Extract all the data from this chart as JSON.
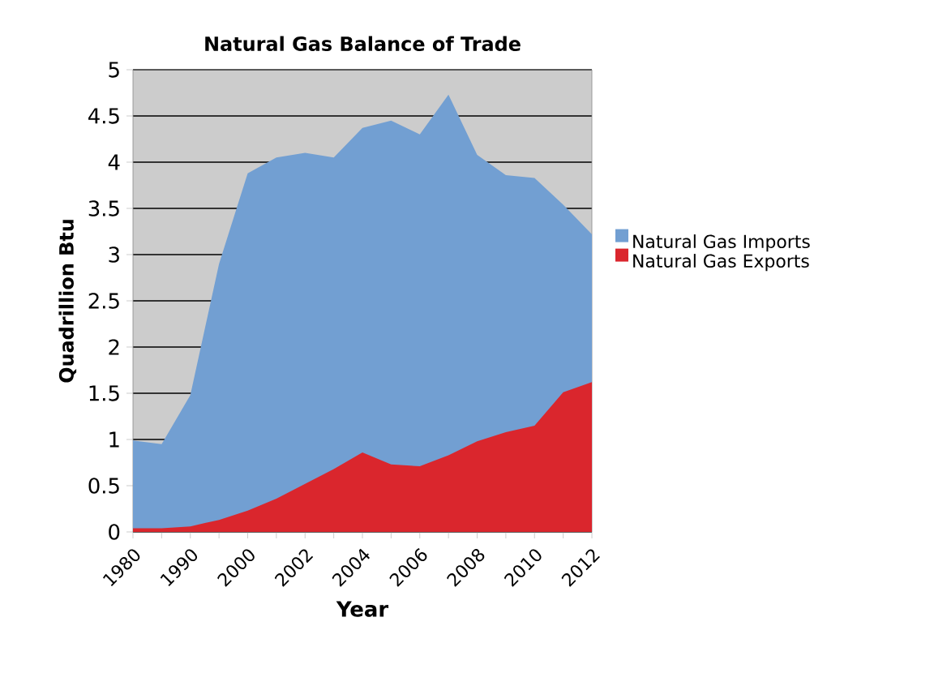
{
  "chart_data": {
    "type": "area",
    "title": "Natural Gas Balance of Trade",
    "xlabel": "Year",
    "ylabel": "Quadrillion Btu",
    "categories": [
      "1980",
      null,
      "1990",
      null,
      "2000",
      null,
      "2002",
      null,
      "2004",
      null,
      "2006",
      null,
      "2008",
      null,
      "2010",
      null,
      "2012"
    ],
    "series": [
      {
        "name": "Natural Gas Imports",
        "color": "#729fd2",
        "values": [
          0.99,
          0.95,
          1.48,
          2.9,
          3.88,
          4.05,
          4.1,
          4.05,
          4.37,
          4.45,
          4.3,
          4.73,
          4.08,
          3.86,
          3.83,
          3.54,
          3.22
        ]
      },
      {
        "name": "Natural Gas Exports",
        "color": "#da262d",
        "values": [
          0.04,
          0.04,
          0.06,
          0.13,
          0.23,
          0.36,
          0.52,
          0.68,
          0.86,
          0.73,
          0.71,
          0.83,
          0.98,
          1.08,
          1.15,
          1.51,
          1.62
        ]
      }
    ],
    "ylim": [
      0,
      5
    ],
    "yticks": [
      0,
      0.5,
      1,
      1.5,
      2,
      2.5,
      3,
      3.5,
      4,
      4.5,
      5
    ],
    "grid": "y",
    "legend": "right"
  }
}
